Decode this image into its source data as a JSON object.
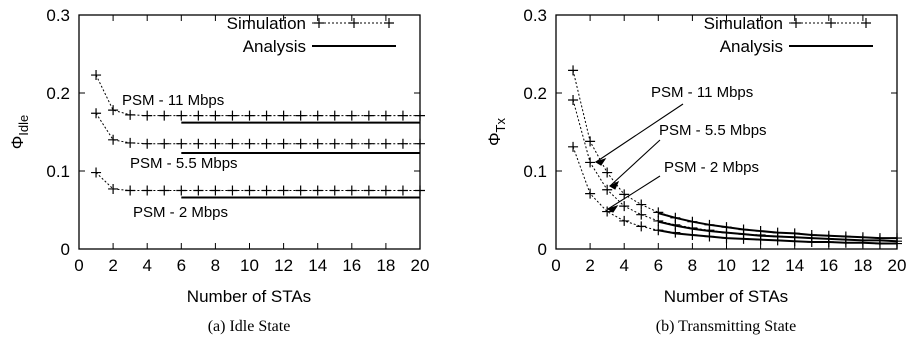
{
  "chart_data": [
    {
      "type": "line",
      "caption": "(a) Idle State",
      "xlabel": "Number of STAs",
      "ylabel_base": "Φ",
      "ylabel_sub": "Idle",
      "xlim": [
        0,
        20
      ],
      "ylim": [
        0,
        0.3
      ],
      "xticks": [
        "0",
        "2",
        "4",
        "6",
        "8",
        "10",
        "12",
        "14",
        "16",
        "18",
        "20"
      ],
      "yticks": [
        "0",
        "0.1",
        "0.2",
        "0.3"
      ],
      "legend": {
        "simulation": "Simulation",
        "analysis": "Analysis",
        "placement": "top-right"
      },
      "series": [
        {
          "name": "PSM - 11 Mbps",
          "simulation": {
            "x": [
              1,
              2,
              3,
              4,
              5,
              6,
              7,
              8,
              9,
              10,
              11,
              12,
              13,
              14,
              15,
              16,
              17,
              18,
              19,
              20
            ],
            "y": [
              0.223,
              0.178,
              0.172,
              0.171,
              0.171,
              0.171,
              0.171,
              0.171,
              0.171,
              0.171,
              0.171,
              0.171,
              0.171,
              0.171,
              0.171,
              0.171,
              0.171,
              0.171,
              0.171,
              0.171
            ]
          },
          "analysis": {
            "x": [
              6,
              20
            ],
            "y": [
              0.162,
              0.162
            ]
          }
        },
        {
          "name": "PSM - 5.5 Mbps",
          "simulation": {
            "x": [
              1,
              2,
              3,
              4,
              5,
              6,
              7,
              8,
              9,
              10,
              11,
              12,
              13,
              14,
              15,
              16,
              17,
              18,
              19,
              20
            ],
            "y": [
              0.174,
              0.14,
              0.136,
              0.135,
              0.135,
              0.135,
              0.135,
              0.135,
              0.135,
              0.135,
              0.135,
              0.135,
              0.135,
              0.135,
              0.135,
              0.135,
              0.135,
              0.135,
              0.135,
              0.135
            ]
          },
          "analysis": {
            "x": [
              6,
              20
            ],
            "y": [
              0.123,
              0.123
            ]
          }
        },
        {
          "name": "PSM - 2 Mbps",
          "simulation": {
            "x": [
              1,
              2,
              3,
              4,
              5,
              6,
              7,
              8,
              9,
              10,
              11,
              12,
              13,
              14,
              15,
              16,
              17,
              18,
              19,
              20
            ],
            "y": [
              0.098,
              0.077,
              0.075,
              0.075,
              0.075,
              0.075,
              0.075,
              0.075,
              0.075,
              0.075,
              0.075,
              0.075,
              0.075,
              0.075,
              0.075,
              0.075,
              0.075,
              0.075,
              0.075,
              0.075
            ]
          },
          "analysis": {
            "x": [
              6,
              20
            ],
            "y": [
              0.066,
              0.066
            ]
          }
        }
      ]
    },
    {
      "type": "line",
      "caption": "(b) Transmitting State",
      "xlabel": "Number of STAs",
      "ylabel_base": "Φ",
      "ylabel_sub": "Tx",
      "xlim": [
        0,
        20
      ],
      "ylim": [
        0,
        0.3
      ],
      "xticks": [
        "0",
        "2",
        "4",
        "6",
        "8",
        "10",
        "12",
        "14",
        "16",
        "18",
        "20"
      ],
      "yticks": [
        "0",
        "0.1",
        "0.2",
        "0.3"
      ],
      "legend": {
        "simulation": "Simulation",
        "analysis": "Analysis",
        "placement": "top-right"
      },
      "series": [
        {
          "name": "PSM - 11 Mbps",
          "simulation": {
            "x": [
              1,
              2,
              3,
              4,
              5,
              6,
              7,
              8,
              9,
              10,
              11,
              12,
              13,
              14,
              15,
              16,
              17,
              18,
              19,
              20
            ],
            "y": [
              0.229,
              0.138,
              0.098,
              0.07,
              0.057,
              0.047,
              0.04,
              0.035,
              0.031,
              0.028,
              0.025,
              0.023,
              0.021,
              0.02,
              0.018,
              0.017,
              0.016,
              0.015,
              0.014,
              0.014
            ]
          },
          "analysis": {
            "x": [
              6,
              7,
              8,
              9,
              10,
              11,
              12,
              13,
              14,
              15,
              16,
              17,
              18,
              19,
              20
            ],
            "y": [
              0.046,
              0.04,
              0.035,
              0.031,
              0.028,
              0.025,
              0.023,
              0.021,
              0.02,
              0.018,
              0.017,
              0.016,
              0.015,
              0.014,
              0.014
            ]
          }
        },
        {
          "name": "PSM - 5.5 Mbps",
          "simulation": {
            "x": [
              1,
              2,
              3,
              4,
              5,
              6,
              7,
              8,
              9,
              10,
              11,
              12,
              13,
              14,
              15,
              16,
              17,
              18,
              19,
              20
            ],
            "y": [
              0.191,
              0.111,
              0.076,
              0.055,
              0.044,
              0.036,
              0.031,
              0.027,
              0.024,
              0.021,
              0.019,
              0.018,
              0.016,
              0.015,
              0.014,
              0.013,
              0.012,
              0.011,
              0.011,
              0.01
            ]
          },
          "analysis": {
            "x": [
              6,
              7,
              8,
              9,
              10,
              11,
              12,
              13,
              14,
              15,
              16,
              17,
              18,
              19,
              20
            ],
            "y": [
              0.035,
              0.03,
              0.026,
              0.023,
              0.021,
              0.019,
              0.017,
              0.016,
              0.015,
              0.014,
              0.013,
              0.012,
              0.011,
              0.011,
              0.01
            ]
          }
        },
        {
          "name": "PSM - 2 Mbps",
          "simulation": {
            "x": [
              1,
              2,
              3,
              4,
              5,
              6,
              7,
              8,
              9,
              10,
              11,
              12,
              13,
              14,
              15,
              16,
              17,
              18,
              19,
              20
            ],
            "y": [
              0.131,
              0.071,
              0.048,
              0.036,
              0.029,
              0.024,
              0.021,
              0.018,
              0.016,
              0.014,
              0.013,
              0.012,
              0.011,
              0.01,
              0.009,
              0.009,
              0.008,
              0.008,
              0.007,
              0.007
            ]
          },
          "analysis": {
            "x": [
              6,
              7,
              8,
              9,
              10,
              11,
              12,
              13,
              14,
              15,
              16,
              17,
              18,
              19,
              20
            ],
            "y": [
              0.024,
              0.02,
              0.018,
              0.016,
              0.014,
              0.013,
              0.012,
              0.011,
              0.01,
              0.009,
              0.009,
              0.008,
              0.008,
              0.007,
              0.007
            ]
          }
        }
      ]
    }
  ]
}
